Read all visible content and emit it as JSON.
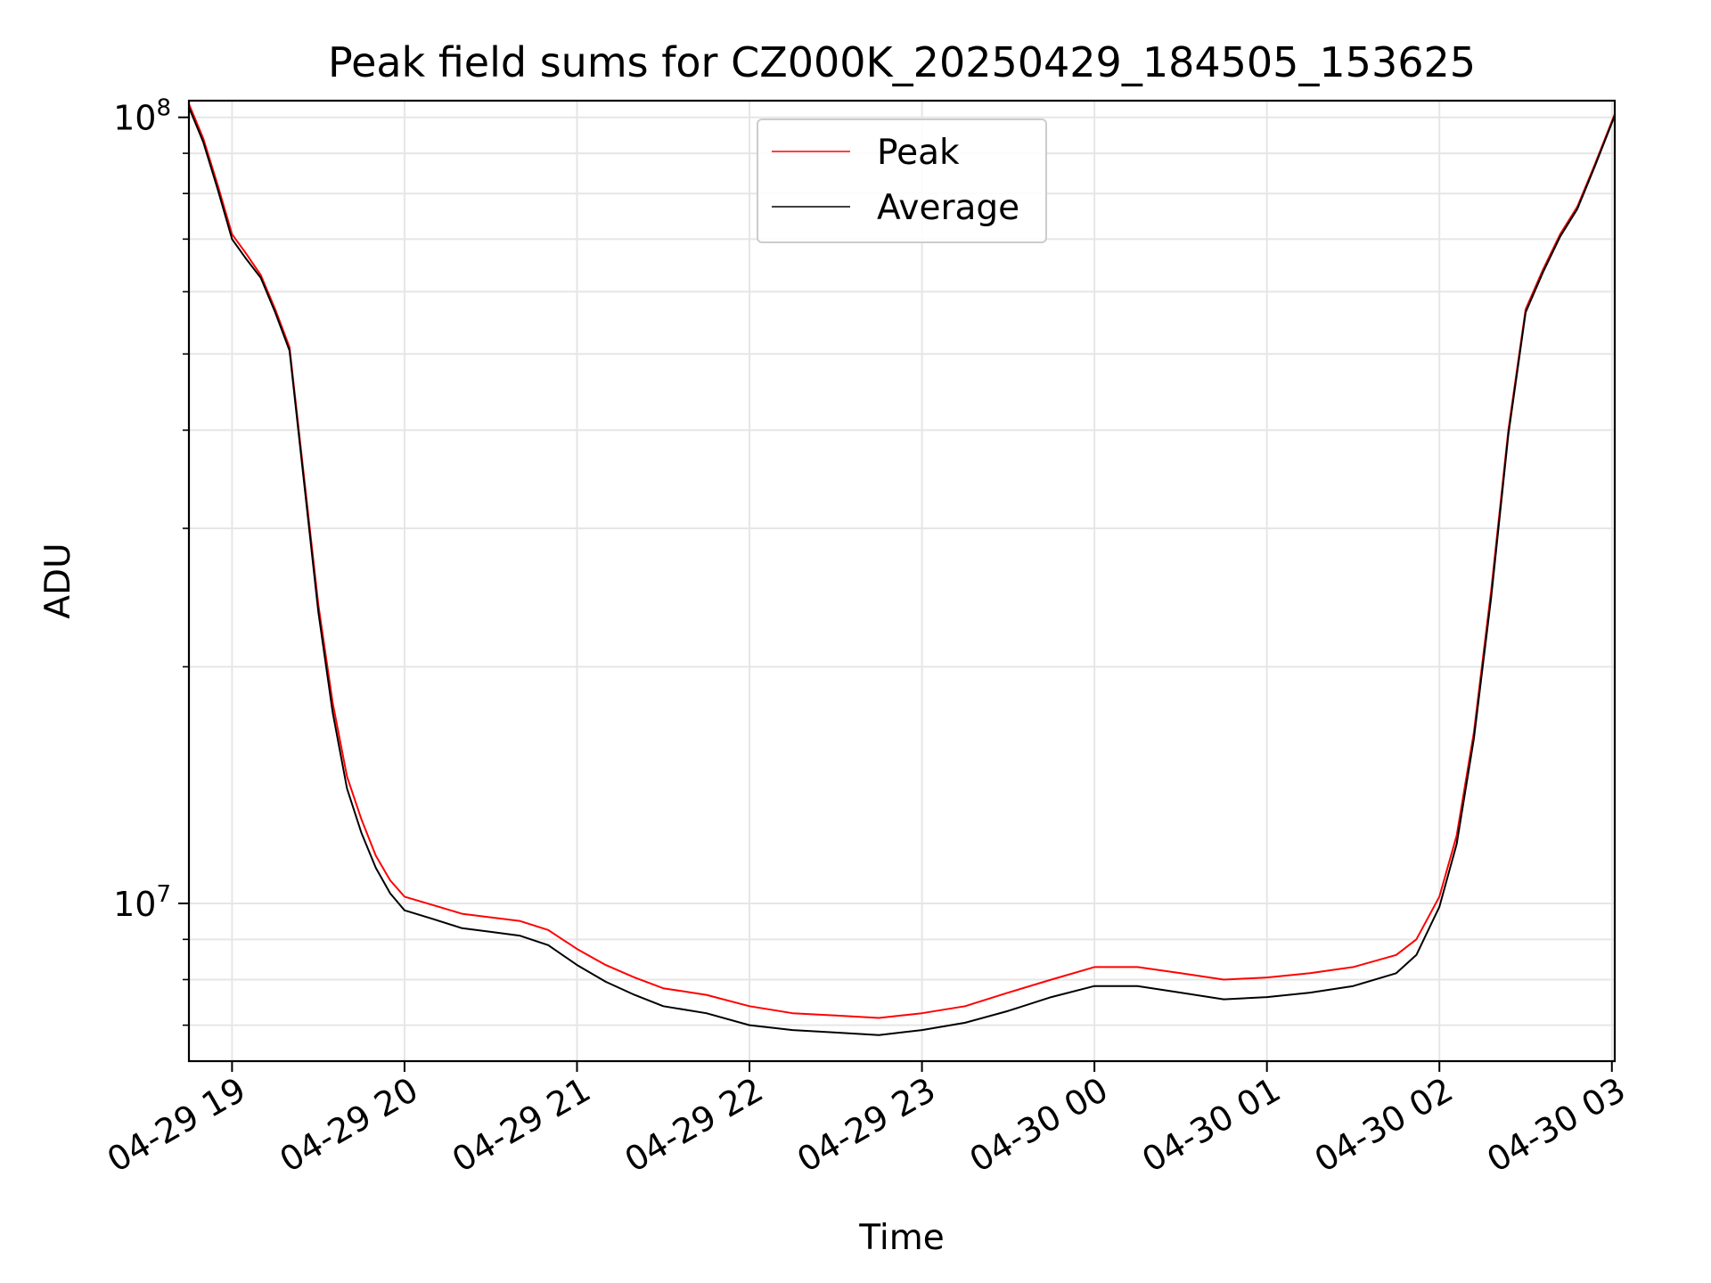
{
  "chart_data": {
    "type": "line",
    "title": "Peak field sums for CZ000K_20250429_184505_153625",
    "xlabel": "Time",
    "ylabel": "ADU",
    "y_scale": "log",
    "ylim": [
      6300000,
      105000000
    ],
    "xlim": [
      "2025-04-29 18:45",
      "2025-04-30 03:01"
    ],
    "x_ticks": [
      "04-29 19",
      "04-29 20",
      "04-29 21",
      "04-29 22",
      "04-29 23",
      "04-30 00",
      "04-30 01",
      "04-30 02",
      "04-30 03"
    ],
    "y_ticks": [
      "10^8",
      "10^7"
    ],
    "y_tick_values": [
      100000000,
      10000000
    ],
    "grid": true,
    "legend_position": "top-center",
    "series": [
      {
        "name": "Peak",
        "color": "#ff0000",
        "points": [
          [
            "2025-04-29 18:45",
            104000000
          ],
          [
            "2025-04-29 18:50",
            94000000
          ],
          [
            "2025-04-29 18:55",
            82000000
          ],
          [
            "2025-04-29 19:00",
            71000000
          ],
          [
            "2025-04-29 19:05",
            67000000
          ],
          [
            "2025-04-29 19:10",
            63000000
          ],
          [
            "2025-04-29 19:15",
            57000000
          ],
          [
            "2025-04-29 19:20",
            51000000
          ],
          [
            "2025-04-29 19:25",
            35000000
          ],
          [
            "2025-04-29 19:30",
            24000000
          ],
          [
            "2025-04-29 19:35",
            18000000
          ],
          [
            "2025-04-29 19:40",
            14500000
          ],
          [
            "2025-04-29 19:45",
            12800000
          ],
          [
            "2025-04-29 19:50",
            11500000
          ],
          [
            "2025-04-29 19:55",
            10700000
          ],
          [
            "2025-04-29 20:00",
            10200000
          ],
          [
            "2025-04-29 20:10",
            9950000
          ],
          [
            "2025-04-29 20:20",
            9700000
          ],
          [
            "2025-04-29 20:30",
            9600000
          ],
          [
            "2025-04-29 20:40",
            9500000
          ],
          [
            "2025-04-29 20:50",
            9250000
          ],
          [
            "2025-04-29 21:00",
            8750000
          ],
          [
            "2025-04-29 21:10",
            8350000
          ],
          [
            "2025-04-29 21:20",
            8050000
          ],
          [
            "2025-04-29 21:30",
            7800000
          ],
          [
            "2025-04-29 21:45",
            7650000
          ],
          [
            "2025-04-29 22:00",
            7400000
          ],
          [
            "2025-04-29 22:15",
            7250000
          ],
          [
            "2025-04-29 22:30",
            7200000
          ],
          [
            "2025-04-29 22:45",
            7150000
          ],
          [
            "2025-04-29 23:00",
            7250000
          ],
          [
            "2025-04-29 23:15",
            7400000
          ],
          [
            "2025-04-29 23:30",
            7700000
          ],
          [
            "2025-04-29 23:45",
            8000000
          ],
          [
            "2025-04-30 00:00",
            8300000
          ],
          [
            "2025-04-30 00:15",
            8300000
          ],
          [
            "2025-04-30 00:30",
            8150000
          ],
          [
            "2025-04-30 00:45",
            8000000
          ],
          [
            "2025-04-30 01:00",
            8050000
          ],
          [
            "2025-04-30 01:15",
            8150000
          ],
          [
            "2025-04-30 01:30",
            8300000
          ],
          [
            "2025-04-30 01:45",
            8600000
          ],
          [
            "2025-04-30 01:52",
            9000000
          ],
          [
            "2025-04-30 02:00",
            10200000
          ],
          [
            "2025-04-30 02:06",
            12200000
          ],
          [
            "2025-04-30 02:12",
            16500000
          ],
          [
            "2025-04-30 02:18",
            25000000
          ],
          [
            "2025-04-30 02:24",
            40000000
          ],
          [
            "2025-04-30 02:30",
            57000000
          ],
          [
            "2025-04-30 02:36",
            64000000
          ],
          [
            "2025-04-30 02:42",
            71000000
          ],
          [
            "2025-04-30 02:48",
            77000000
          ],
          [
            "2025-04-30 02:54",
            87000000
          ],
          [
            "2025-04-30 03:01",
            101000000
          ]
        ]
      },
      {
        "name": "Average",
        "color": "#000000",
        "points": [
          [
            "2025-04-29 18:45",
            103000000
          ],
          [
            "2025-04-29 18:50",
            93000000
          ],
          [
            "2025-04-29 18:55",
            81000000
          ],
          [
            "2025-04-29 19:00",
            70000000
          ],
          [
            "2025-04-29 19:05",
            66000000
          ],
          [
            "2025-04-29 19:10",
            62500000
          ],
          [
            "2025-04-29 19:15",
            56500000
          ],
          [
            "2025-04-29 19:20",
            50500000
          ],
          [
            "2025-04-29 19:25",
            34500000
          ],
          [
            "2025-04-29 19:30",
            23500000
          ],
          [
            "2025-04-29 19:35",
            17500000
          ],
          [
            "2025-04-29 19:40",
            14000000
          ],
          [
            "2025-04-29 19:45",
            12300000
          ],
          [
            "2025-04-29 19:50",
            11100000
          ],
          [
            "2025-04-29 19:55",
            10300000
          ],
          [
            "2025-04-29 20:00",
            9800000
          ],
          [
            "2025-04-29 20:10",
            9550000
          ],
          [
            "2025-04-29 20:20",
            9300000
          ],
          [
            "2025-04-29 20:30",
            9200000
          ],
          [
            "2025-04-29 20:40",
            9100000
          ],
          [
            "2025-04-29 20:50",
            8850000
          ],
          [
            "2025-04-29 21:00",
            8350000
          ],
          [
            "2025-04-29 21:10",
            7950000
          ],
          [
            "2025-04-29 21:20",
            7650000
          ],
          [
            "2025-04-29 21:30",
            7400000
          ],
          [
            "2025-04-29 21:45",
            7250000
          ],
          [
            "2025-04-29 22:00",
            7000000
          ],
          [
            "2025-04-29 22:15",
            6900000
          ],
          [
            "2025-04-29 22:30",
            6850000
          ],
          [
            "2025-04-29 22:45",
            6800000
          ],
          [
            "2025-04-29 23:00",
            6900000
          ],
          [
            "2025-04-29 23:15",
            7050000
          ],
          [
            "2025-04-29 23:30",
            7300000
          ],
          [
            "2025-04-29 23:45",
            7600000
          ],
          [
            "2025-04-30 00:00",
            7850000
          ],
          [
            "2025-04-30 00:15",
            7850000
          ],
          [
            "2025-04-30 00:30",
            7700000
          ],
          [
            "2025-04-30 00:45",
            7550000
          ],
          [
            "2025-04-30 01:00",
            7600000
          ],
          [
            "2025-04-30 01:15",
            7700000
          ],
          [
            "2025-04-30 01:30",
            7850000
          ],
          [
            "2025-04-30 01:45",
            8150000
          ],
          [
            "2025-04-30 01:52",
            8600000
          ],
          [
            "2025-04-30 02:00",
            9900000
          ],
          [
            "2025-04-30 02:06",
            11900000
          ],
          [
            "2025-04-30 02:12",
            16200000
          ],
          [
            "2025-04-30 02:18",
            24500000
          ],
          [
            "2025-04-30 02:24",
            39500000
          ],
          [
            "2025-04-30 02:30",
            56500000
          ],
          [
            "2025-04-30 02:36",
            63500000
          ],
          [
            "2025-04-30 02:42",
            70500000
          ],
          [
            "2025-04-30 02:48",
            76500000
          ],
          [
            "2025-04-30 02:54",
            86500000
          ],
          [
            "2025-04-30 03:01",
            100500000
          ]
        ]
      }
    ]
  }
}
